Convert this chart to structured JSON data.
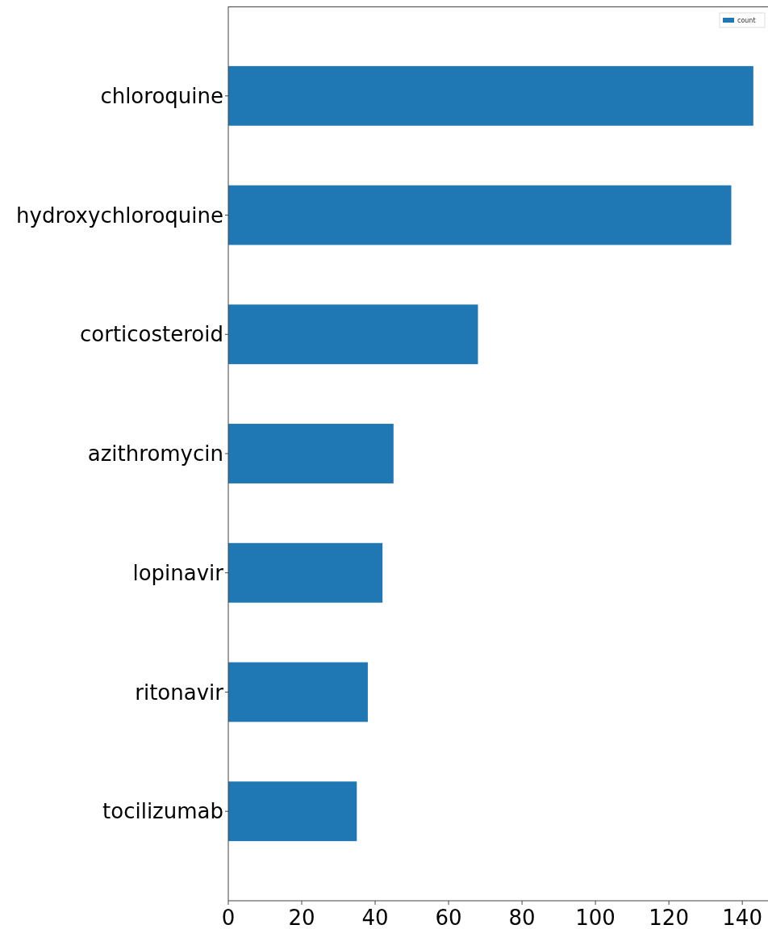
{
  "chart_data": {
    "type": "bar",
    "orientation": "horizontal",
    "categories": [
      "chloroquine",
      "hydroxychloroquine",
      "corticosteroid",
      "azithromycin",
      "lopinavir",
      "ritonavir",
      "tocilizumab"
    ],
    "series": [
      {
        "name": "count",
        "color": "#1f77b4",
        "values": [
          143,
          137,
          68,
          45,
          42,
          38,
          35
        ]
      }
    ],
    "xlim": [
      0,
      147
    ],
    "xticks": [
      0,
      20,
      40,
      60,
      80,
      100,
      120,
      140
    ],
    "legend": "top right",
    "grid": false
  }
}
